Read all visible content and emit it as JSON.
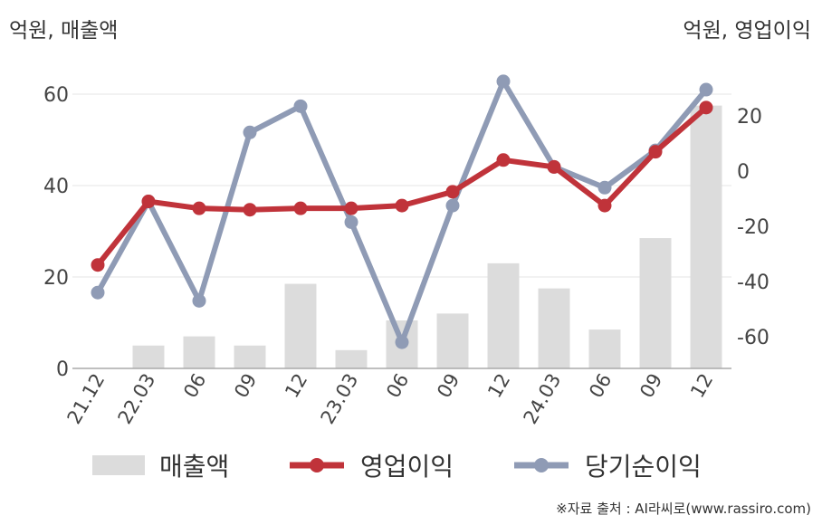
{
  "units": {
    "left": "억원, 매출액",
    "right": "억원, 영업이익"
  },
  "colors": {
    "bars": "#dcdcdc",
    "operating_profit": "#c0333a",
    "net_income": "#8f9bb5",
    "grid": "#e6e6e6",
    "axis": "#aaaaaa"
  },
  "chart_data": {
    "type": "bar",
    "categories": [
      "21.12",
      "22.03",
      "06",
      "09",
      "12",
      "23.03",
      "06",
      "09",
      "12",
      "24.03",
      "06",
      "09",
      "12"
    ],
    "left_axis": {
      "ylim": [
        0,
        60
      ],
      "ticks": [
        "0",
        "20",
        "40",
        "60"
      ]
    },
    "right_axis": {
      "ylim": [
        -70,
        30
      ],
      "ticks": [
        "-60",
        "-40",
        "-20",
        "0",
        "20"
      ]
    },
    "grid": true,
    "legend_position": "bottom",
    "series": [
      {
        "name": "매출액",
        "type": "bar",
        "axis": "left",
        "values": [
          0,
          5,
          7,
          5,
          18.5,
          4,
          10.5,
          12,
          23,
          17.5,
          8.5,
          28.5,
          57.5
        ]
      },
      {
        "name": "영업이익",
        "type": "line",
        "axis": "right",
        "values": [
          -34,
          -11,
          -13.5,
          -14,
          -13.5,
          -13.5,
          -12.5,
          -7.5,
          4,
          1.5,
          -12.5,
          7,
          23
        ]
      },
      {
        "name": "당기순이익",
        "type": "line",
        "axis": "right",
        "values": [
          -44,
          -11,
          -47,
          14,
          23.5,
          -18.5,
          -62,
          -12.5,
          32.5,
          1.5,
          -6,
          7.5,
          29.5
        ]
      }
    ]
  },
  "legend": {
    "bars": "매출액",
    "operating_profit": "영업이익",
    "net_income": "당기순이익"
  },
  "source": "※자료 출처 : AI라씨로(www.rassiro.com)"
}
